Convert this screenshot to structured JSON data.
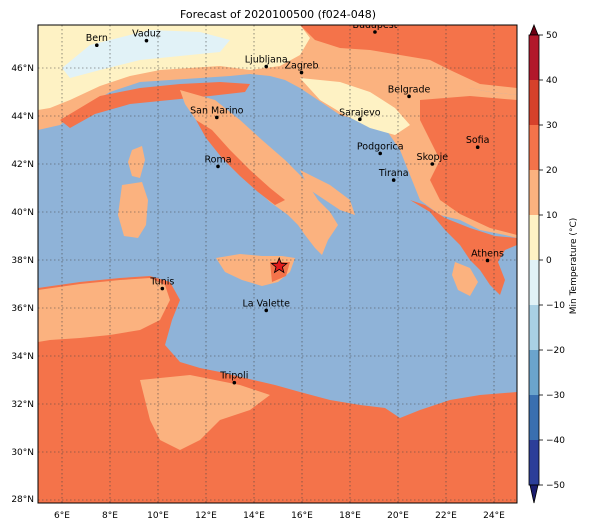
{
  "title": "Forecast of 2020100500 (f024-048)",
  "lat_ticks": [
    "46°N",
    "44°N",
    "42°N",
    "40°N",
    "38°N",
    "36°N",
    "34°N",
    "32°N",
    "30°N",
    "28°N"
  ],
  "lon_ticks": [
    "6°E",
    "8°E",
    "10°E",
    "12°E",
    "14°E",
    "16°E",
    "18°E",
    "20°E",
    "22°E",
    "24°E"
  ],
  "colorbar": {
    "label": "Min Temperature (°C)",
    "ticks": [
      "50",
      "40",
      "30",
      "20",
      "10",
      "0",
      "−10",
      "−20",
      "−30",
      "−40",
      "−50"
    ],
    "bands": [
      "#6b0012",
      "#b2182b",
      "#d6412b",
      "#f4734a",
      "#fbb27f",
      "#fef2c4",
      "#e1f2f7",
      "#a9d0e4",
      "#6ba4cc",
      "#3a6fb0",
      "#2c3e99",
      "#1a1c6e"
    ]
  },
  "cities": [
    {
      "name": "Bern",
      "lon": 7.45,
      "lat": 46.95
    },
    {
      "name": "Vaduz",
      "lon": 9.52,
      "lat": 47.14
    },
    {
      "name": "Budapest",
      "lon": 19.04,
      "lat": 47.5
    },
    {
      "name": "Ljubljana",
      "lon": 14.51,
      "lat": 46.06
    },
    {
      "name": "Zagreb",
      "lon": 15.98,
      "lat": 45.81
    },
    {
      "name": "Belgrade",
      "lon": 20.46,
      "lat": 44.82
    },
    {
      "name": "San Marino",
      "lon": 12.45,
      "lat": 43.94
    },
    {
      "name": "Sarajevo",
      "lon": 18.41,
      "lat": 43.86
    },
    {
      "name": "Sofia",
      "lon": 23.32,
      "lat": 42.7
    },
    {
      "name": "Podgorica",
      "lon": 19.26,
      "lat": 42.44
    },
    {
      "name": "Skopje",
      "lon": 21.43,
      "lat": 42.0
    },
    {
      "name": "Roma",
      "lon": 12.5,
      "lat": 41.9
    },
    {
      "name": "Tirana",
      "lon": 19.82,
      "lat": 41.33
    },
    {
      "name": "Athens",
      "lon": 23.73,
      "lat": 37.98
    },
    {
      "name": "Tunis",
      "lon": 10.18,
      "lat": 36.81
    },
    {
      "name": "La Valette",
      "lon": 14.51,
      "lat": 35.9
    },
    {
      "name": "Tripoli",
      "lon": 13.18,
      "lat": 32.89
    }
  ],
  "marker": {
    "icon": "star-marker-icon",
    "lon": 15.05,
    "lat": 37.75,
    "color": "#e31a1c"
  },
  "colors": {
    "sea": "#8fb3d8",
    "warm": "#f4734a",
    "mild": "#fbb27f",
    "cool": "#fef2c4",
    "cold": "#e1f2f7"
  }
}
